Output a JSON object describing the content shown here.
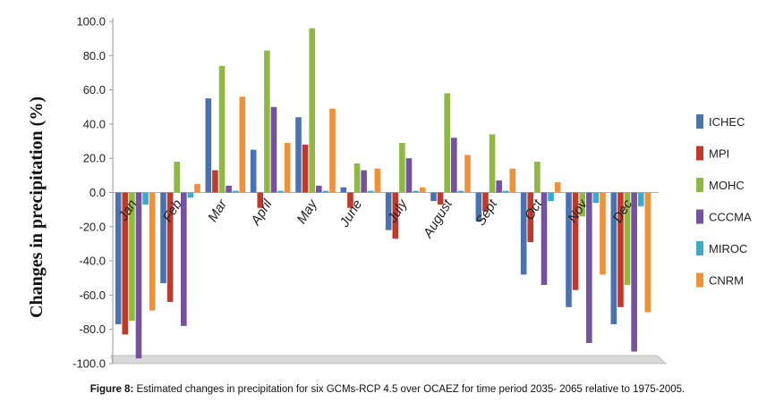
{
  "caption": {
    "label": "Figure 8:",
    "text": " Estimated changes in precipitation for six GCMs-RCP 4.5 over OCAEZ for time period 2035- 2065 relative to 1975-2005."
  },
  "chart_data": {
    "type": "bar",
    "title": "",
    "xlabel": "",
    "ylabel": "Changes in precipitation (%)",
    "ylim": [
      -100,
      100
    ],
    "yticks": [
      "100.0",
      "80.0",
      "60.0",
      "40.0",
      "20.0",
      "0.0",
      "-20.0",
      "-40.0",
      "-60.0",
      "-80.0",
      "-100.0"
    ],
    "grid": false,
    "legend_position": "right",
    "categories": [
      "Jan",
      "Feb",
      "Mar",
      "April",
      "May",
      "June",
      "July",
      "August",
      "Sept",
      "Oct",
      "Nov",
      "Dec"
    ],
    "series": [
      {
        "name": "ICHEC",
        "color": "#4a72b0",
        "values": [
          -77,
          -53,
          55,
          25,
          44,
          3,
          -22,
          -5,
          -17,
          -48,
          -67,
          -77
        ]
      },
      {
        "name": "MPI",
        "color": "#c0392b",
        "values": [
          -83,
          -64,
          13,
          -9,
          28,
          -9,
          -27,
          -7,
          -11,
          -29,
          -57,
          -67
        ]
      },
      {
        "name": "MOHC",
        "color": "#8fb943",
        "values": [
          -75,
          18,
          74,
          83,
          96,
          17,
          29,
          58,
          34,
          18,
          -14,
          -54
        ]
      },
      {
        "name": "CCCMA",
        "color": "#7451a1",
        "values": [
          -97,
          -78,
          4,
          50,
          4,
          13,
          20,
          32,
          7,
          -54,
          -88,
          -93
        ]
      },
      {
        "name": "MIROC",
        "color": "#3aaac9",
        "values": [
          -7,
          -3,
          1,
          1,
          1,
          1,
          1,
          1,
          1,
          -5,
          -6,
          -8
        ]
      },
      {
        "name": "CNRM",
        "color": "#f0913a",
        "values": [
          -69,
          5,
          56,
          29,
          49,
          14,
          3,
          22,
          14,
          6,
          -48,
          -70
        ]
      }
    ]
  }
}
